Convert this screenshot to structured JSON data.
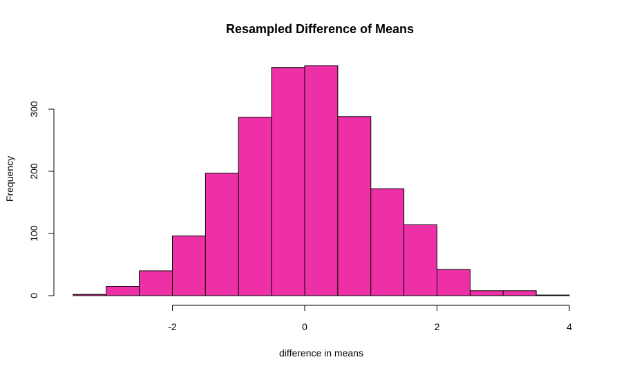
{
  "chart_data": {
    "type": "bar",
    "title": "Resampled Difference of Means",
    "xlabel": "difference in means",
    "ylabel": "Frequency",
    "bin_edges": [
      -3.5,
      -3.0,
      -2.5,
      -2.0,
      -1.5,
      -1.0,
      -0.5,
      0.0,
      0.5,
      1.0,
      1.5,
      2.0,
      2.5,
      3.0,
      3.5,
      4.0
    ],
    "values": [
      2,
      15,
      40,
      96,
      197,
      287,
      367,
      370,
      288,
      172,
      114,
      42,
      8,
      8,
      1
    ],
    "x_ticks": [
      -2,
      0,
      2,
      4
    ],
    "x_tick_labels": [
      "-2",
      "0",
      "2",
      "4"
    ],
    "y_ticks": [
      0,
      100,
      200,
      300
    ],
    "y_tick_labels": [
      "0",
      "100",
      "200",
      "300"
    ],
    "xlim": [
      -3.5,
      4.0
    ],
    "ylim": [
      0,
      370
    ],
    "grid": false,
    "bar_color": "#EE30A7",
    "border_color": "#000000"
  }
}
